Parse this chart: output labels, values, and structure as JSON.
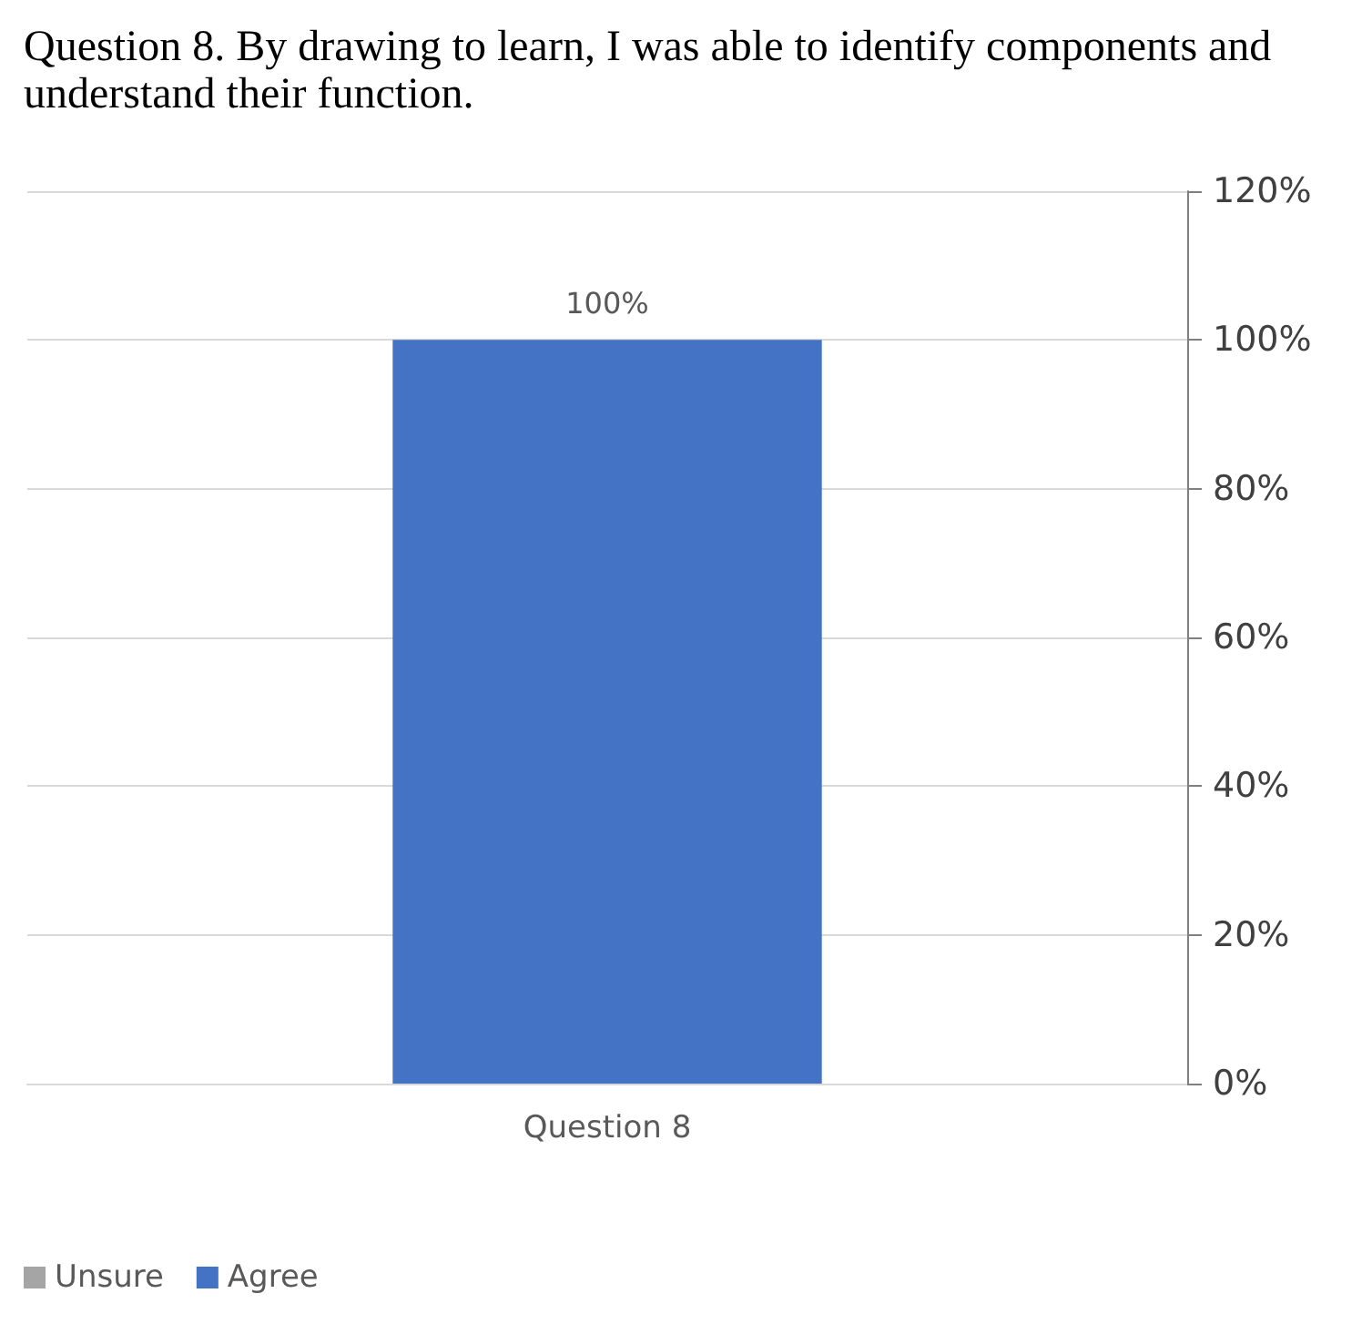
{
  "chart_data": {
    "type": "bar",
    "title": "Question 8. By drawing to learn, I was able to identify components and understand their function.",
    "categories": [
      "Question 8"
    ],
    "series": [
      {
        "name": "Unsure",
        "color": "#a5a5a5",
        "values": [
          null
        ]
      },
      {
        "name": "Agree",
        "color": "#4472c4",
        "values": [
          100
        ],
        "value_labels": [
          "100%"
        ]
      }
    ],
    "stacked": true,
    "ylim": [
      0,
      120
    ],
    "yticks": [
      {
        "value": 0,
        "label": "0%"
      },
      {
        "value": 20,
        "label": "20%"
      },
      {
        "value": 40,
        "label": "40%"
      },
      {
        "value": 60,
        "label": "60%"
      },
      {
        "value": 80,
        "label": "80%"
      },
      {
        "value": 100,
        "label": "100%"
      },
      {
        "value": 120,
        "label": "120%"
      }
    ],
    "grid": "y",
    "legend": "bottom left"
  }
}
